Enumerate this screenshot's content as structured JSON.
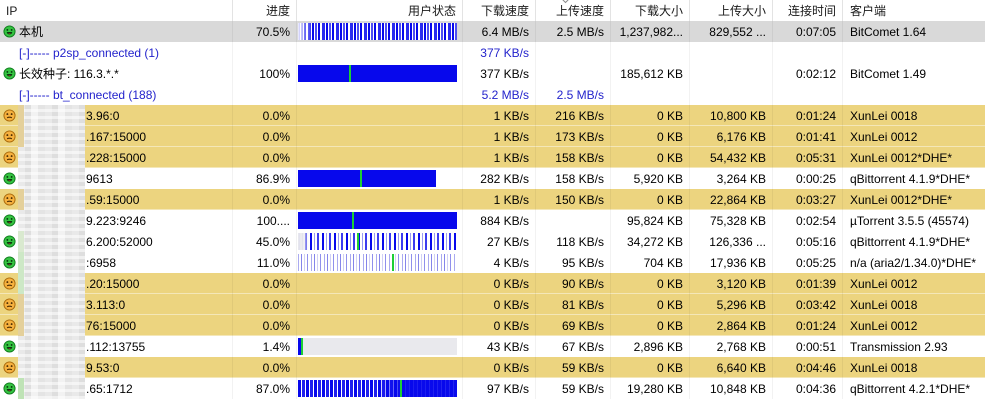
{
  "columns": {
    "ip": "IP",
    "progress": "进度",
    "status": "用户状态",
    "dl_speed": "下载速度",
    "ul_speed": "上传速度",
    "dl_size": "下载大小",
    "ul_size": "上传大小",
    "time": "连接时间",
    "client": "客户端"
  },
  "sort": {
    "column_key": "ul_speed",
    "direction": "desc"
  },
  "colors": {
    "selected_row": "#d9d9d9",
    "highlight_row": "#ecd47f",
    "bar_blue": "#0708ec",
    "marker_green": "#1dcf34",
    "link_blue": "#2323cc"
  },
  "rows": [
    {
      "type": "local",
      "bg": "selected",
      "icon": "happy",
      "masked": false,
      "label": "本机",
      "progress": "70.5%",
      "bar": {
        "kind": "striped",
        "density": "local",
        "fill": 100,
        "marker": null
      },
      "dl_speed": "6.4 MB/s",
      "ul_speed": "2.5 MB/s",
      "dl_size": "1,237,982...",
      "ul_size": "829,552 ...",
      "time": "0:07:05",
      "client": "BitComet 1.64"
    },
    {
      "type": "group",
      "bg": "white",
      "label": "[-]----- p2sp_connected (1)",
      "dl_speed": "377 KB/s"
    },
    {
      "type": "seed",
      "bg": "white",
      "icon": "happy",
      "masked": false,
      "label": "长效种子: 116.3.*.*",
      "progress": "100%",
      "bar": {
        "kind": "solid",
        "fill": 100,
        "marker": 32
      },
      "dl_speed": "377 KB/s",
      "dl_size": "185,612 KB",
      "time": "0:02:12",
      "client": "BitComet 1.49"
    },
    {
      "type": "group",
      "bg": "white",
      "label": "[-]----- bt_connected (188)",
      "dl_speed": "5.2 MB/s",
      "ul_speed": "2.5 MB/s"
    },
    {
      "type": "peer",
      "bg": "yellow",
      "icon": "sad",
      "masked": true,
      "tint": "#e4d09b",
      "label": "3.96:0",
      "progress": "0.0%",
      "dl_speed": "1 KB/s",
      "ul_speed": "216 KB/s",
      "dl_size": "0 KB",
      "ul_size": "10,800 KB",
      "time": "0:01:24",
      "client": "XunLei 0018"
    },
    {
      "type": "peer",
      "bg": "yellow",
      "icon": "sad",
      "masked": true,
      "tint": "#e4d09b",
      "label": ".167:15000",
      "progress": "0.0%",
      "dl_speed": "1 KB/s",
      "ul_speed": "173 KB/s",
      "dl_size": "0 KB",
      "ul_size": "6,176 KB",
      "time": "0:01:41",
      "client": "XunLei 0012"
    },
    {
      "type": "peer",
      "bg": "yellow",
      "icon": "sad",
      "masked": true,
      "label": ".228:15000",
      "progress": "0.0%",
      "dl_speed": "1 KB/s",
      "ul_speed": "158 KB/s",
      "dl_size": "0 KB",
      "ul_size": "54,432 KB",
      "time": "0:05:31",
      "client": "XunLei 0012*DHE*"
    },
    {
      "type": "peer",
      "bg": "white",
      "icon": "happy",
      "masked": true,
      "label": "9613",
      "progress": "86.9%",
      "bar": {
        "kind": "solid",
        "fill": 87,
        "marker": 39
      },
      "dl_speed": "282 KB/s",
      "ul_speed": "158 KB/s",
      "dl_size": "5,920 KB",
      "ul_size": "3,264 KB",
      "time": "0:00:25",
      "client": "qBittorrent 4.1.9*DHE*"
    },
    {
      "type": "peer",
      "bg": "yellow",
      "icon": "sad",
      "masked": true,
      "tint": "#e4d09b",
      "label": ".59:15000",
      "progress": "0.0%",
      "dl_speed": "1 KB/s",
      "ul_speed": "150 KB/s",
      "dl_size": "0 KB",
      "ul_size": "22,864 KB",
      "time": "0:03:27",
      "client": "XunLei 0012*DHE*"
    },
    {
      "type": "peer",
      "bg": "white",
      "icon": "happy",
      "masked": true,
      "label": "9.223:9246",
      "progress": "100....",
      "bar": {
        "kind": "solid",
        "fill": 100,
        "marker": 34
      },
      "dl_speed": "884 KB/s",
      "dl_size": "95,824 KB",
      "ul_size": "75,328 KB",
      "time": "0:02:54",
      "client": "µTorrent 3.5.5 (45574)"
    },
    {
      "type": "peer",
      "bg": "white",
      "icon": "happy",
      "masked": true,
      "tint": "#d9e9cf",
      "label": "6.200:52000",
      "progress": "45.0%",
      "bar": {
        "kind": "striped",
        "density": "medium",
        "fill": 100,
        "marker": 37
      },
      "dl_speed": "27 KB/s",
      "ul_speed": "118 KB/s",
      "dl_size": "34,272 KB",
      "ul_size": "126,336 ...",
      "time": "0:05:16",
      "client": "qBittorrent 4.1.9*DHE*"
    },
    {
      "type": "peer",
      "bg": "white",
      "icon": "happy",
      "masked": true,
      "tint": "#cde8c6",
      "label": ":6958",
      "progress": "11.0%",
      "bar": {
        "kind": "striped",
        "density": "sparse",
        "fill": 100,
        "marker": 59
      },
      "dl_speed": "4 KB/s",
      "ul_speed": "95 KB/s",
      "dl_size": "704 KB",
      "ul_size": "17,936 KB",
      "time": "0:05:25",
      "client": "n/a (aria2/1.34.0)*DHE*"
    },
    {
      "type": "peer",
      "bg": "yellow",
      "icon": "sad",
      "masked": true,
      "tint": "#cde8c6",
      "label": ".20:15000",
      "progress": "0.0%",
      "dl_speed": "0 KB/s",
      "ul_speed": "90 KB/s",
      "dl_size": "0 KB",
      "ul_size": "3,120 KB",
      "time": "0:01:39",
      "client": "XunLei 0012"
    },
    {
      "type": "peer",
      "bg": "yellow",
      "icon": "sad",
      "masked": true,
      "tint": "#e4d09b",
      "label": "3.113:0",
      "progress": "0.0%",
      "dl_speed": "0 KB/s",
      "ul_speed": "81 KB/s",
      "dl_size": "0 KB",
      "ul_size": "5,296 KB",
      "time": "0:03:42",
      "client": "XunLei 0018"
    },
    {
      "type": "peer",
      "bg": "yellow",
      "icon": "sad",
      "masked": true,
      "tint": "#e4d09b",
      "label": "76:15000",
      "progress": "0.0%",
      "dl_speed": "0 KB/s",
      "ul_speed": "69 KB/s",
      "dl_size": "0 KB",
      "ul_size": "2,864 KB",
      "time": "0:01:24",
      "client": "XunLei 0012"
    },
    {
      "type": "peer",
      "bg": "white",
      "icon": "happy",
      "masked": true,
      "label": ".112:13755",
      "progress": "1.4%",
      "bar": {
        "kind": "sliver",
        "fill": 2,
        "marker": 2
      },
      "dl_speed": "43 KB/s",
      "ul_speed": "67 KB/s",
      "dl_size": "2,896 KB",
      "ul_size": "2,768 KB",
      "time": "0:00:51",
      "client": "Transmission 2.93"
    },
    {
      "type": "peer",
      "bg": "yellow",
      "icon": "sad",
      "masked": true,
      "label": "9.53:0",
      "progress": "0.0%",
      "dl_speed": "0 KB/s",
      "ul_speed": "59 KB/s",
      "dl_size": "0 KB",
      "ul_size": "6,640 KB",
      "time": "0:04:46",
      "client": "XunLei 0018"
    },
    {
      "type": "peer",
      "bg": "white",
      "icon": "happy",
      "masked": true,
      "tint": "#bfe3b6",
      "label": ".65:1712",
      "progress": "87.0%",
      "bar": {
        "kind": "striped",
        "density": "dense",
        "fill": 100,
        "marker": 64
      },
      "dl_speed": "97 KB/s",
      "ul_speed": "59 KB/s",
      "dl_size": "19,280 KB",
      "ul_size": "10,848 KB",
      "time": "0:04:36",
      "client": "qBittorrent 4.2.1*DHE*"
    }
  ]
}
